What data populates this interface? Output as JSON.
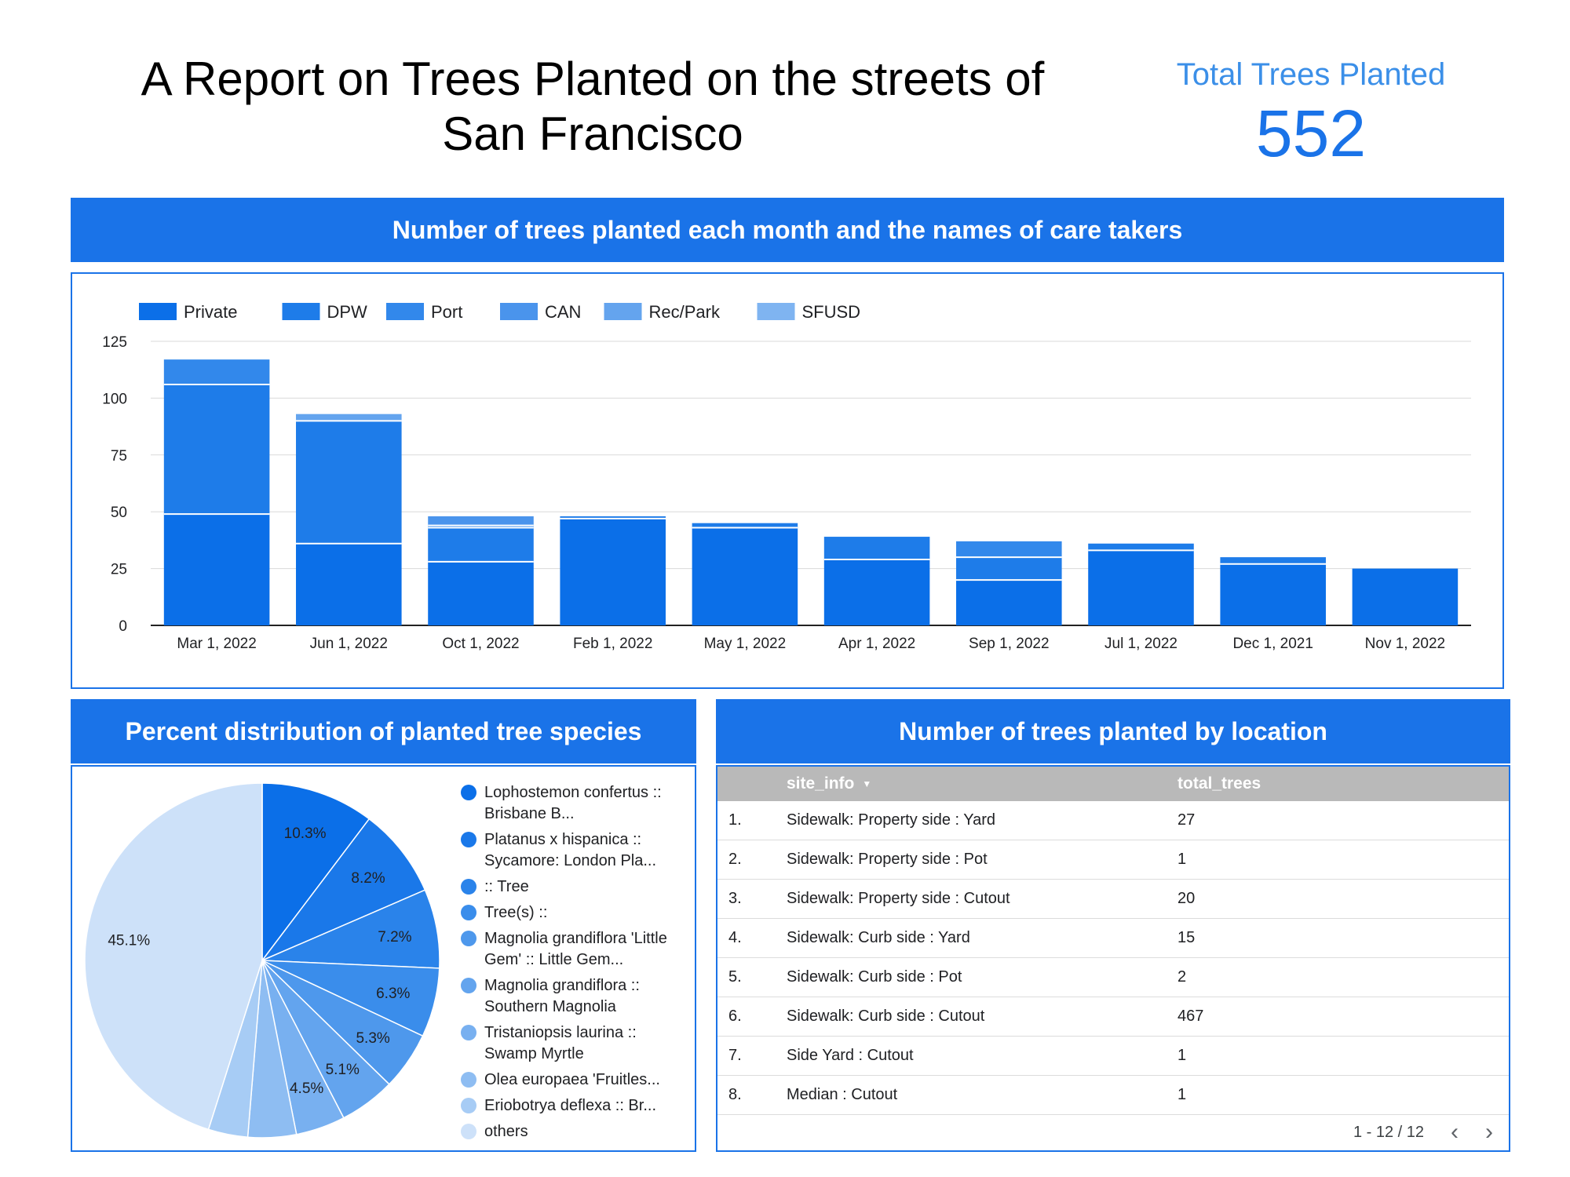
{
  "header": {
    "title": "A Report on Trees Planted on the streets of San Francisco",
    "kpi_label": "Total Trees Planted",
    "kpi_value": "552"
  },
  "bar_section": {
    "title": "Number of trees planted each month and the names of care takers"
  },
  "pie_section": {
    "title": "Percent distribution of planted tree species"
  },
  "table_section": {
    "title": "Number of trees planted by location"
  },
  "chart_data": [
    {
      "type": "bar",
      "stacked": true,
      "categories": [
        "Mar 1, 2022",
        "Jun 1, 2022",
        "Oct 1, 2022",
        "Feb 1, 2022",
        "May 1, 2022",
        "Apr 1, 2022",
        "Sep 1, 2022",
        "Jul 1, 2022",
        "Dec 1, 2021",
        "Nov 1, 2022"
      ],
      "series": [
        {
          "name": "Private",
          "color": "#0b6fe8",
          "values": [
            49,
            36,
            28,
            47,
            43,
            29,
            20,
            33,
            27,
            25
          ]
        },
        {
          "name": "DPW",
          "color": "#1e7ce9",
          "values": [
            57,
            54,
            15,
            1,
            2,
            10,
            10,
            3,
            3,
            0
          ]
        },
        {
          "name": "Port",
          "color": "#3288eb",
          "values": [
            11,
            0,
            1,
            0,
            0,
            0,
            7,
            0,
            0,
            0
          ]
        },
        {
          "name": "CAN",
          "color": "#4a94ec",
          "values": [
            0,
            0,
            4,
            0,
            0,
            0,
            0,
            0,
            0,
            0
          ]
        },
        {
          "name": "Rec/Park",
          "color": "#64a4ee",
          "values": [
            0,
            3,
            0,
            0,
            0,
            0,
            0,
            0,
            0,
            0
          ]
        },
        {
          "name": "SFUSD",
          "color": "#7fb4f1",
          "values": [
            0,
            0,
            0,
            0,
            0,
            0,
            0,
            0,
            0,
            0
          ]
        }
      ],
      "ylim": [
        0,
        125
      ],
      "yticks": [
        0,
        25,
        50,
        75,
        100,
        125
      ],
      "grid": true,
      "legend": "top-left"
    },
    {
      "type": "pie",
      "slices": [
        {
          "label": "Lophostemon confertus :: Brisbane B...",
          "value": 10.3,
          "color": "#0b6fe8"
        },
        {
          "label": "Platanus x hispanica :: Sycamore: London Pla...",
          "value": 8.2,
          "color": "#1a78e9"
        },
        {
          "label": ":: Tree",
          "value": 7.2,
          "color": "#2a83ea"
        },
        {
          "label": "Tree(s) ::",
          "value": 6.3,
          "color": "#3a8deb"
        },
        {
          "label": "Magnolia grandiflora 'Little Gem' :: Little Gem...",
          "value": 5.3,
          "color": "#4e98ec"
        },
        {
          "label": "Magnolia grandiflora :: Southern Magnolia",
          "value": 5.1,
          "color": "#63a4ee"
        },
        {
          "label": "Tristaniopsis laurina :: Swamp Myrtle",
          "value": 4.5,
          "color": "#78b0f0"
        },
        {
          "label": "Olea europaea 'Fruitles...",
          "value": 4.4,
          "color": "#8ebdf2"
        },
        {
          "label": "Eriobotrya deflexa :: Br...",
          "value": 3.6,
          "color": "#a7ccf5"
        },
        {
          "label": "others",
          "value": 45.1,
          "color": "#cde1f9"
        }
      ],
      "shown_labels": [
        "10.3%",
        "8.2%",
        "7.2%",
        "6.3%",
        "5.3%",
        "5.1%",
        "4.5%",
        "",
        "",
        "45.1%"
      ],
      "legend": "right"
    }
  ],
  "table": {
    "columns": [
      "site_info",
      "total_trees"
    ],
    "rows": [
      {
        "idx": "1.",
        "site": "Sidewalk: Property side : Yard",
        "total": "27"
      },
      {
        "idx": "2.",
        "site": "Sidewalk: Property side : Pot",
        "total": "1"
      },
      {
        "idx": "3.",
        "site": "Sidewalk: Property side : Cutout",
        "total": "20"
      },
      {
        "idx": "4.",
        "site": "Sidewalk: Curb side : Yard",
        "total": "15"
      },
      {
        "idx": "5.",
        "site": "Sidewalk: Curb side : Pot",
        "total": "2"
      },
      {
        "idx": "6.",
        "site": "Sidewalk: Curb side : Cutout",
        "total": "467"
      },
      {
        "idx": "7.",
        "site": "Side Yard : Cutout",
        "total": "1"
      },
      {
        "idx": "8.",
        "site": "Median : Cutout",
        "total": "1"
      }
    ],
    "pagination": "1 - 12 / 12",
    "prev_icon": "chevron-left-icon",
    "next_icon": "chevron-right-icon"
  }
}
